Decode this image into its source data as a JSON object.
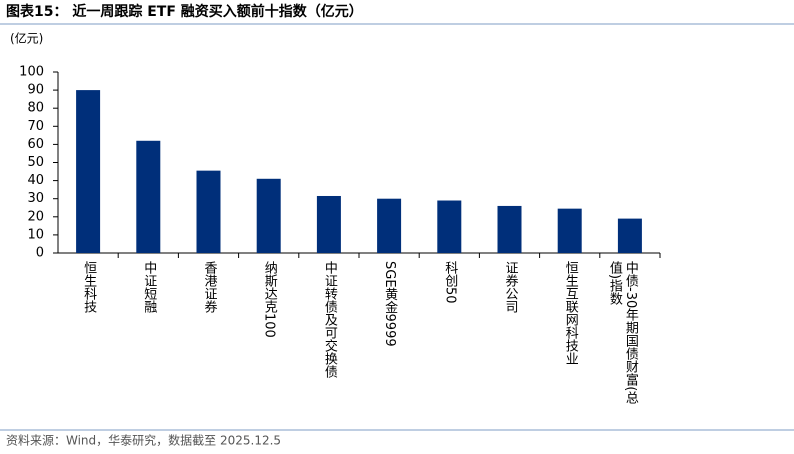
{
  "chart_data": {
    "type": "bar",
    "title": "图表15： 近一周跟踪 ETF 融资买入额前十指数（亿元）",
    "y_label": "(亿元)",
    "categories": [
      "恒生科技",
      "中证短融",
      "香港证券",
      "纳斯达克100",
      "中证转债及可交换债",
      "SGE黄金9999",
      "科创50",
      "证券公司",
      "恒生互联网科技业",
      "中债-30年期国债财富(总值)指数"
    ],
    "values": [
      90,
      62,
      45.5,
      41,
      31.5,
      30,
      29,
      26,
      24.5,
      19
    ],
    "color": "#002f7a",
    "ylim": [
      0,
      100
    ],
    "yticks": [
      0,
      10,
      20,
      30,
      40,
      50,
      60,
      70,
      80,
      90,
      100
    ],
    "source": "资料来源：Wind，华泰研究，数据截至 2025.12.5"
  }
}
